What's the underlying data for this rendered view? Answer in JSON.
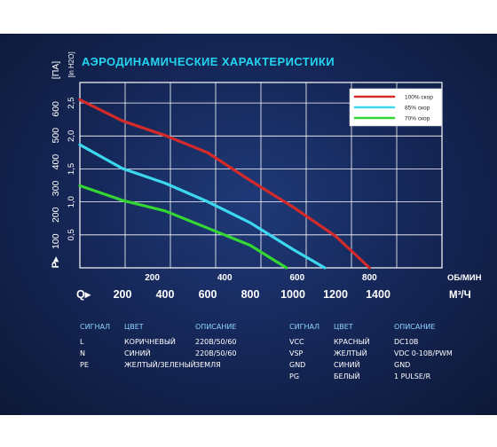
{
  "chart_data": {
    "type": "line",
    "title": "АЭРОДИНАМИЧЕСКИЕ ХАРАКТЕРИСТИКИ",
    "y_left": {
      "label": "Р▸  [ПА]",
      "ticks": [
        100,
        200,
        300,
        400,
        500,
        600
      ],
      "range": [
        0,
        700
      ]
    },
    "y_right": {
      "label": "[in H2O]",
      "ticks": [
        "0,5",
        "1,0",
        "1,5",
        "2,0",
        "2,5"
      ],
      "values": [
        0.5,
        1.0,
        1.5,
        2.0,
        2.5
      ]
    },
    "x_top": {
      "label": "ОБ/МИН",
      "ticks": [
        200,
        400,
        600,
        800
      ],
      "range": [
        0,
        1000
      ]
    },
    "x_bottom": {
      "label": "Q▸",
      "unit": "М³/Ч",
      "ticks": [
        200,
        400,
        600,
        800,
        1000,
        1200,
        1400
      ],
      "range": [
        0,
        1700
      ]
    },
    "series": [
      {
        "name": "100% скор",
        "color": "#d42a2a",
        "points": [
          [
            0,
            635
          ],
          [
            200,
            555
          ],
          [
            400,
            500
          ],
          [
            600,
            435
          ],
          [
            800,
            330
          ],
          [
            1000,
            230
          ],
          [
            1200,
            120
          ],
          [
            1360,
            0
          ]
        ]
      },
      {
        "name": "85% скор",
        "color": "#3cd8f0",
        "points": [
          [
            0,
            465
          ],
          [
            200,
            375
          ],
          [
            400,
            320
          ],
          [
            600,
            250
          ],
          [
            800,
            170
          ],
          [
            1000,
            70
          ],
          [
            1150,
            0
          ]
        ]
      },
      {
        "name": "70% скор",
        "color": "#33d633",
        "points": [
          [
            0,
            310
          ],
          [
            200,
            255
          ],
          [
            400,
            215
          ],
          [
            600,
            150
          ],
          [
            800,
            85
          ],
          [
            970,
            0
          ]
        ]
      }
    ],
    "legend_position": "top-right",
    "grid": true
  },
  "signals_left": {
    "headers": [
      "СИГНАЛ",
      "ЦВЕТ",
      "ОПИСАНИЕ"
    ],
    "rows": [
      [
        "L",
        "КОРИЧНЕВЫЙ",
        "220В/50/60"
      ],
      [
        "N",
        "СИНИЙ",
        "220В/50/60"
      ],
      [
        "PE",
        "ЖЕЛТЫЙ/ЗЕЛЕНЫЙ",
        "ЗЕМЛЯ"
      ]
    ]
  },
  "signals_right": {
    "headers": [
      "СИГНАЛ",
      "ЦВЕТ",
      "ОПИСАНИЕ"
    ],
    "rows": [
      [
        "VCC",
        "КРАСНЫЙ",
        "DC10В"
      ],
      [
        "VSP",
        "ЖЕЛТЫЙ",
        "VDC 0-10В/PWM"
      ],
      [
        "GND",
        "СИНИЙ",
        "GND"
      ],
      [
        "PG",
        "БЕЛЫЙ",
        "1 PULSE/R"
      ]
    ]
  }
}
